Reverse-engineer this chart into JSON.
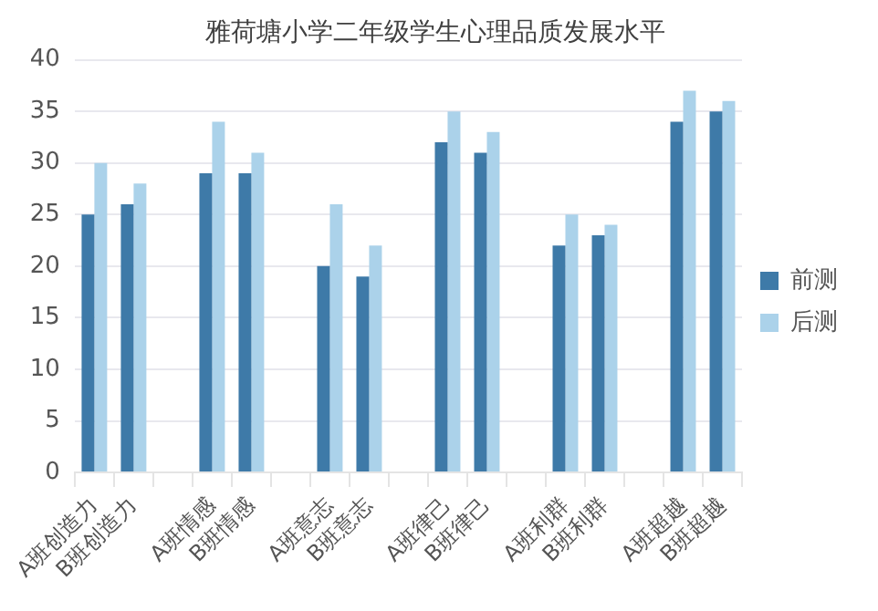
{
  "chart_data": {
    "type": "bar",
    "title": "雅荷塘小学二年级学生心理品质发展水平",
    "categories": [
      "A班创造力",
      "B班创造力",
      null,
      "A班情感",
      "B班情感",
      null,
      "A班意志",
      "B班意志",
      null,
      "A班律己",
      "B班律己",
      null,
      "A班利群",
      "B班利群",
      null,
      "A班超越",
      "B班超越"
    ],
    "series": [
      {
        "name": "前测",
        "color": "#3e7aa8",
        "values": [
          25,
          26,
          null,
          29,
          29,
          null,
          20,
          19,
          null,
          32,
          31,
          null,
          22,
          23,
          null,
          34,
          35
        ]
      },
      {
        "name": "后测",
        "color": "#abd2ea",
        "values": [
          30,
          28,
          null,
          34,
          31,
          null,
          26,
          22,
          null,
          35,
          33,
          null,
          25,
          24,
          null,
          37,
          36
        ]
      }
    ],
    "ylim": [
      0,
      40
    ],
    "yticks": [
      0,
      5,
      10,
      15,
      20,
      25,
      30,
      35,
      40
    ],
    "grid": "y",
    "legend": "right"
  }
}
